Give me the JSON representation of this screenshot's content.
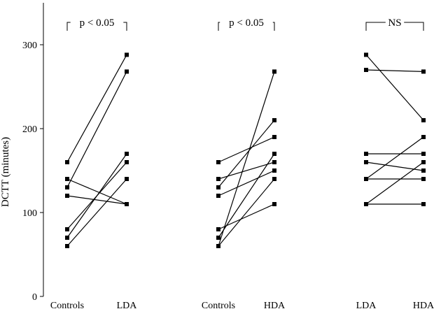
{
  "chart_data": {
    "type": "line",
    "ylabel": "DCTT (minutes)",
    "ylim": [
      0,
      350
    ],
    "yticks": [
      0,
      100,
      200,
      300
    ],
    "panels": [
      {
        "categories": [
          "Controls",
          "LDA"
        ],
        "significance": "p < 0.05",
        "pairs": [
          [
            160,
            288
          ],
          [
            140,
            110
          ],
          [
            130,
            268
          ],
          [
            120,
            110
          ],
          [
            80,
            160
          ],
          [
            70,
            170
          ],
          [
            60,
            140
          ]
        ]
      },
      {
        "categories": [
          "Controls",
          "HDA"
        ],
        "significance": "p < 0.05",
        "pairs": [
          [
            160,
            190
          ],
          [
            140,
            160
          ],
          [
            130,
            210
          ],
          [
            120,
            150
          ],
          [
            80,
            110
          ],
          [
            70,
            170
          ],
          [
            60,
            140
          ],
          [
            60,
            268
          ]
        ]
      },
      {
        "categories": [
          "LDA",
          "HDA"
        ],
        "significance": "NS",
        "pairs": [
          [
            288,
            210
          ],
          [
            270,
            268
          ],
          [
            170,
            170
          ],
          [
            160,
            150
          ],
          [
            140,
            140
          ],
          [
            140,
            190
          ],
          [
            110,
            110
          ],
          [
            110,
            160
          ]
        ]
      }
    ]
  }
}
